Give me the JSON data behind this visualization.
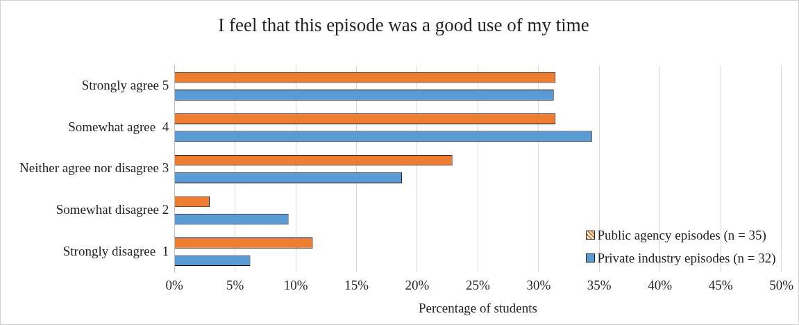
{
  "chart_data": {
    "type": "bar",
    "orientation": "horizontal",
    "title": "I feel that this episode was a good use of my time",
    "xlabel": "Percentage of students",
    "categories": [
      "Strongly agree 5",
      "Somewhat agree  4",
      "Neither agree nor disagree 3",
      "Somewhat disagree 2",
      "Strongly disagree  1"
    ],
    "series": [
      {
        "name": "Public agency episodes (n = 35)",
        "color": "#ed7d31",
        "values": [
          31.4,
          31.4,
          22.9,
          2.9,
          11.4
        ]
      },
      {
        "name": "Private industry episodes (n = 32)",
        "color": "#5b9bd5",
        "values": [
          31.25,
          34.4,
          18.75,
          9.4,
          6.25
        ]
      }
    ],
    "xlim": [
      0,
      50
    ],
    "xticks": [
      {
        "value": 0,
        "label": "0%"
      },
      {
        "value": 5,
        "label": "5%"
      },
      {
        "value": 10,
        "label": "10%"
      },
      {
        "value": 15,
        "label": "15%"
      },
      {
        "value": 20,
        "label": "20%"
      },
      {
        "value": 25,
        "label": "25%"
      },
      {
        "value": 30,
        "label": "30%"
      },
      {
        "value": 35,
        "label": "35%"
      },
      {
        "value": 40,
        "label": "40%"
      },
      {
        "value": 45,
        "label": "45%"
      },
      {
        "value": 50,
        "label": "50%"
      }
    ],
    "grid": "x",
    "legend": "bottom right"
  }
}
